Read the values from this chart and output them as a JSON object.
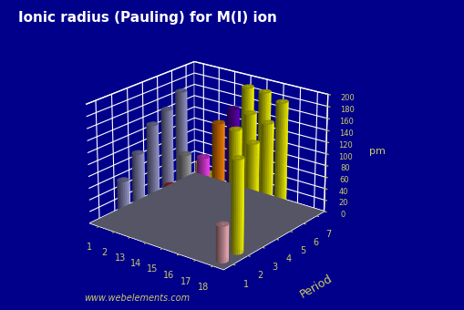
{
  "title": "Ionic radius (Pauling) for M(I) ion",
  "ylabel": "Period",
  "zlabel": "pm",
  "background_color": "#00008B",
  "floor_color": "#555566",
  "title_color": "#FFFFFF",
  "tick_color": "#CCCC66",
  "grid_color": "#FFFFFF",
  "group_labels": [
    "1",
    "2",
    "13",
    "14",
    "15",
    "16",
    "17",
    "18"
  ],
  "period_labels": [
    "1",
    "2",
    "3",
    "4",
    "5",
    "6",
    "7"
  ],
  "zmax": 200,
  "zticks": [
    0,
    20,
    40,
    60,
    80,
    100,
    120,
    140,
    160,
    180,
    200
  ],
  "elev": 22,
  "azim": -52,
  "website": "www.webelements.com",
  "bars": [
    {
      "gi": 0,
      "pi": 1,
      "value": 60,
      "color": "#9999CC"
    },
    {
      "gi": 0,
      "pi": 2,
      "value": 95,
      "color": "#9999CC"
    },
    {
      "gi": 0,
      "pi": 3,
      "value": 133,
      "color": "#9999CC"
    },
    {
      "gi": 0,
      "pi": 4,
      "value": 148,
      "color": "#9999CC"
    },
    {
      "gi": 0,
      "pi": 5,
      "value": 169,
      "color": "#9999CC"
    },
    {
      "gi": 1,
      "pi": 6,
      "value": 20,
      "color": "#FFFF00"
    },
    {
      "gi": 2,
      "pi": 5,
      "value": 20,
      "color": "#FFFF00"
    },
    {
      "gi": 3,
      "pi": 1,
      "value": 77,
      "color": "#CC3333"
    },
    {
      "gi": 3,
      "pi": 2,
      "value": 117,
      "color": "#AAAAAA"
    },
    {
      "gi": 4,
      "pi": 1,
      "value": 71,
      "color": "#AAAAAA"
    },
    {
      "gi": 4,
      "pi": 2,
      "value": 112,
      "color": "#FFFF44"
    },
    {
      "gi": 5,
      "pi": 1,
      "value": 140,
      "color": "#FF44FF"
    },
    {
      "gi": 5,
      "pi": 2,
      "value": 184,
      "color": "#FF8800"
    },
    {
      "gi": 5,
      "pi": 3,
      "value": 196,
      "color": "#6600BB"
    },
    {
      "gi": 5,
      "pi": 4,
      "value": 221,
      "color": "#FFFF00"
    },
    {
      "gi": 6,
      "pi": 2,
      "value": 181,
      "color": "#FFFF00"
    },
    {
      "gi": 6,
      "pi": 3,
      "value": 196,
      "color": "#FFFF00"
    },
    {
      "gi": 6,
      "pi": 4,
      "value": 220,
      "color": "#FFFF00"
    },
    {
      "gi": 7,
      "pi": 0,
      "value": 60,
      "color": "#FFB6C1"
    },
    {
      "gi": 7,
      "pi": 1,
      "value": 154,
      "color": "#FFFF00"
    },
    {
      "gi": 7,
      "pi": 2,
      "value": 167,
      "color": "#FFFF00"
    },
    {
      "gi": 7,
      "pi": 3,
      "value": 188,
      "color": "#FFFF00"
    },
    {
      "gi": 7,
      "pi": 4,
      "value": 211,
      "color": "#FFFF00"
    }
  ]
}
